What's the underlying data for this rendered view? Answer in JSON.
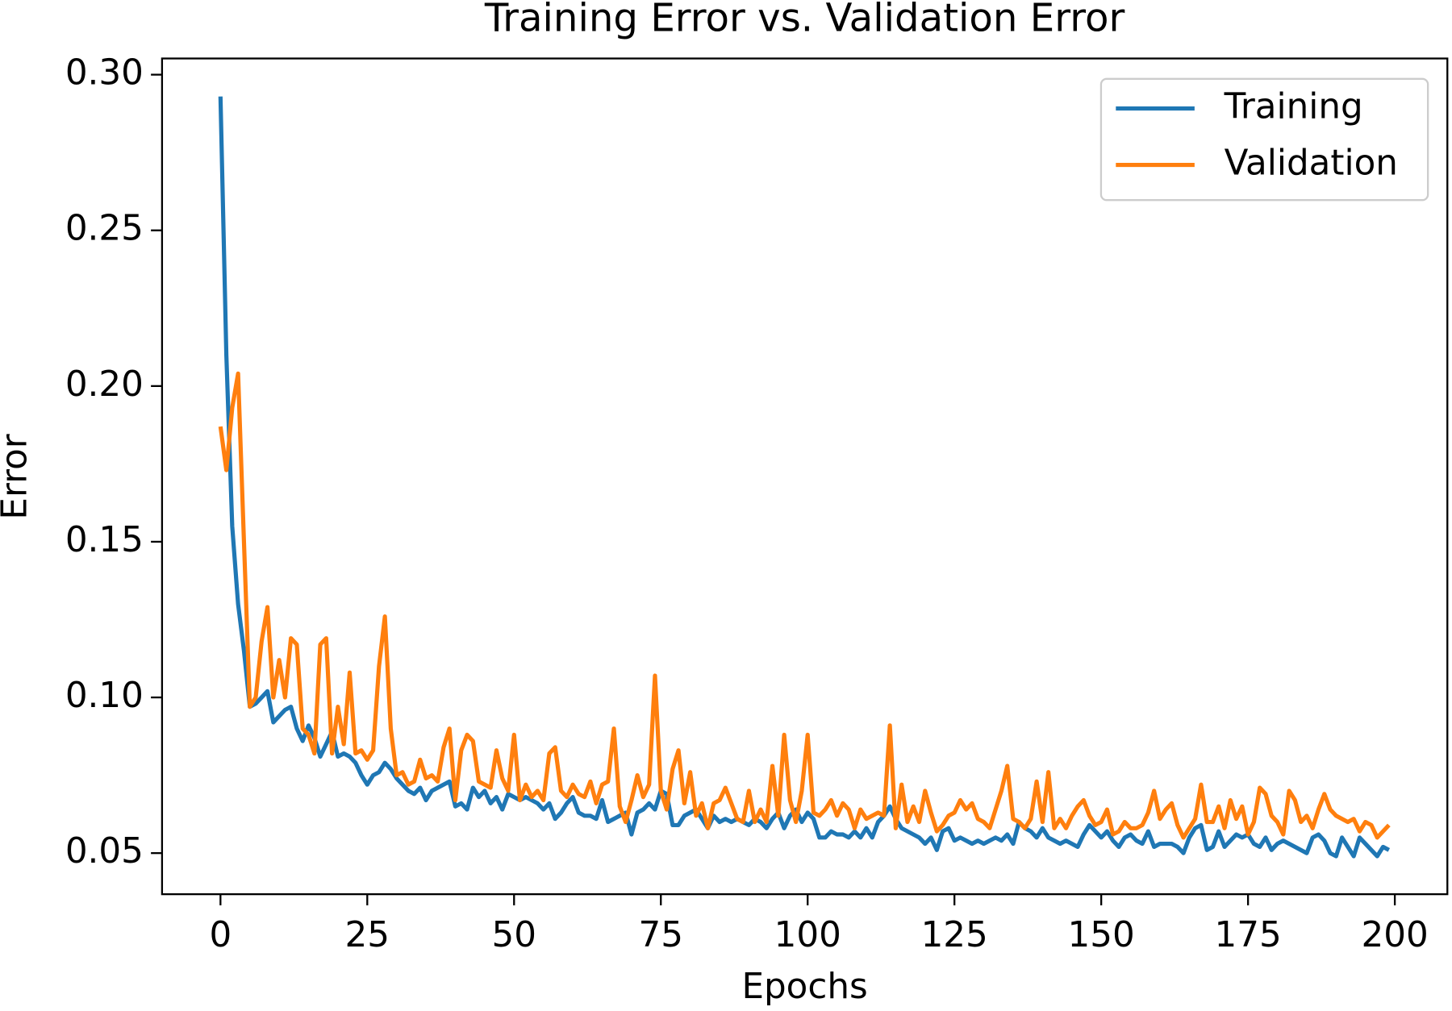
{
  "chart_data": {
    "type": "line",
    "title": "Training Error vs. Validation Error",
    "xlabel": "Epochs",
    "ylabel": "Error",
    "x": [
      0,
      1,
      2,
      3,
      4,
      5,
      6,
      7,
      8,
      9,
      10,
      11,
      12,
      13,
      14,
      15,
      16,
      17,
      18,
      19,
      20,
      21,
      22,
      23,
      24,
      25,
      26,
      27,
      28,
      29,
      30,
      31,
      32,
      33,
      34,
      35,
      36,
      37,
      38,
      39,
      40,
      41,
      42,
      43,
      44,
      45,
      46,
      47,
      48,
      49,
      50,
      51,
      52,
      53,
      54,
      55,
      56,
      57,
      58,
      59,
      60,
      61,
      62,
      63,
      64,
      65,
      66,
      67,
      68,
      69,
      70,
      71,
      72,
      73,
      74,
      75,
      76,
      77,
      78,
      79,
      80,
      81,
      82,
      83,
      84,
      85,
      86,
      87,
      88,
      89,
      90,
      91,
      92,
      93,
      94,
      95,
      96,
      97,
      98,
      99,
      100,
      101,
      102,
      103,
      104,
      105,
      106,
      107,
      108,
      109,
      110,
      111,
      112,
      113,
      114,
      115,
      116,
      117,
      118,
      119,
      120,
      121,
      122,
      123,
      124,
      125,
      126,
      127,
      128,
      129,
      130,
      131,
      132,
      133,
      134,
      135,
      136,
      137,
      138,
      139,
      140,
      141,
      142,
      143,
      144,
      145,
      146,
      147,
      148,
      149,
      150,
      151,
      152,
      153,
      154,
      155,
      156,
      157,
      158,
      159,
      160,
      161,
      162,
      163,
      164,
      165,
      166,
      167,
      168,
      169,
      170,
      171,
      172,
      173,
      174,
      175,
      176,
      177,
      178,
      179,
      180,
      181,
      182,
      183,
      184,
      185,
      186,
      187,
      188,
      189,
      190,
      191,
      192,
      193,
      194,
      195,
      196,
      197,
      198,
      199
    ],
    "series": [
      {
        "name": "Training",
        "color": "#1f77b4",
        "values": [
          0.293,
          0.21,
          0.155,
          0.13,
          0.115,
          0.097,
          0.098,
          0.1,
          0.102,
          0.092,
          0.094,
          0.096,
          0.097,
          0.09,
          0.086,
          0.091,
          0.087,
          0.081,
          0.085,
          0.089,
          0.081,
          0.082,
          0.081,
          0.079,
          0.075,
          0.072,
          0.075,
          0.076,
          0.079,
          0.077,
          0.074,
          0.072,
          0.07,
          0.069,
          0.071,
          0.067,
          0.07,
          0.071,
          0.072,
          0.073,
          0.065,
          0.066,
          0.064,
          0.071,
          0.068,
          0.07,
          0.066,
          0.068,
          0.064,
          0.069,
          0.068,
          0.067,
          0.068,
          0.067,
          0.066,
          0.064,
          0.066,
          0.061,
          0.063,
          0.066,
          0.068,
          0.063,
          0.062,
          0.062,
          0.061,
          0.067,
          0.06,
          0.061,
          0.062,
          0.063,
          0.056,
          0.063,
          0.064,
          0.066,
          0.064,
          0.07,
          0.069,
          0.059,
          0.059,
          0.062,
          0.063,
          0.064,
          0.061,
          0.058,
          0.062,
          0.06,
          0.061,
          0.06,
          0.061,
          0.06,
          0.059,
          0.061,
          0.06,
          0.058,
          0.061,
          0.063,
          0.058,
          0.062,
          0.064,
          0.06,
          0.063,
          0.061,
          0.055,
          0.055,
          0.057,
          0.056,
          0.056,
          0.055,
          0.057,
          0.055,
          0.058,
          0.055,
          0.06,
          0.062,
          0.065,
          0.061,
          0.058,
          0.057,
          0.056,
          0.055,
          0.053,
          0.055,
          0.051,
          0.057,
          0.058,
          0.054,
          0.055,
          0.054,
          0.053,
          0.054,
          0.053,
          0.054,
          0.055,
          0.054,
          0.056,
          0.053,
          0.06,
          0.058,
          0.057,
          0.055,
          0.058,
          0.055,
          0.054,
          0.053,
          0.054,
          0.053,
          0.052,
          0.056,
          0.059,
          0.057,
          0.055,
          0.057,
          0.054,
          0.052,
          0.055,
          0.056,
          0.054,
          0.053,
          0.057,
          0.052,
          0.053,
          0.053,
          0.053,
          0.052,
          0.05,
          0.055,
          0.058,
          0.059,
          0.051,
          0.052,
          0.057,
          0.052,
          0.054,
          0.056,
          0.055,
          0.056,
          0.053,
          0.052,
          0.055,
          0.051,
          0.053,
          0.054,
          0.053,
          0.052,
          0.051,
          0.05,
          0.055,
          0.056,
          0.054,
          0.05,
          0.049,
          0.055,
          0.052,
          0.049,
          0.055,
          0.053,
          0.051,
          0.049,
          0.052,
          0.051
        ]
      },
      {
        "name": "Validation",
        "color": "#ff7f0e",
        "values": [
          0.187,
          0.173,
          0.193,
          0.204,
          0.15,
          0.097,
          0.1,
          0.118,
          0.129,
          0.1,
          0.112,
          0.1,
          0.119,
          0.117,
          0.09,
          0.088,
          0.082,
          0.117,
          0.119,
          0.082,
          0.097,
          0.085,
          0.108,
          0.082,
          0.083,
          0.08,
          0.083,
          0.11,
          0.126,
          0.09,
          0.075,
          0.076,
          0.072,
          0.073,
          0.08,
          0.074,
          0.075,
          0.073,
          0.084,
          0.09,
          0.067,
          0.083,
          0.088,
          0.086,
          0.073,
          0.072,
          0.071,
          0.083,
          0.074,
          0.07,
          0.088,
          0.067,
          0.072,
          0.068,
          0.07,
          0.067,
          0.082,
          0.084,
          0.07,
          0.068,
          0.072,
          0.069,
          0.068,
          0.073,
          0.066,
          0.072,
          0.073,
          0.09,
          0.065,
          0.06,
          0.067,
          0.075,
          0.068,
          0.072,
          0.107,
          0.07,
          0.064,
          0.077,
          0.083,
          0.066,
          0.076,
          0.062,
          0.066,
          0.058,
          0.066,
          0.067,
          0.071,
          0.066,
          0.061,
          0.06,
          0.07,
          0.06,
          0.064,
          0.06,
          0.078,
          0.062,
          0.088,
          0.067,
          0.06,
          0.07,
          0.088,
          0.063,
          0.062,
          0.064,
          0.067,
          0.062,
          0.066,
          0.064,
          0.058,
          0.064,
          0.061,
          0.062,
          0.063,
          0.062,
          0.091,
          0.058,
          0.072,
          0.06,
          0.065,
          0.06,
          0.07,
          0.063,
          0.057,
          0.059,
          0.062,
          0.063,
          0.067,
          0.064,
          0.066,
          0.061,
          0.06,
          0.058,
          0.064,
          0.07,
          0.078,
          0.061,
          0.06,
          0.058,
          0.061,
          0.073,
          0.06,
          0.076,
          0.058,
          0.061,
          0.058,
          0.062,
          0.065,
          0.067,
          0.062,
          0.059,
          0.06,
          0.064,
          0.056,
          0.057,
          0.06,
          0.058,
          0.058,
          0.059,
          0.063,
          0.07,
          0.061,
          0.064,
          0.066,
          0.059,
          0.055,
          0.058,
          0.061,
          0.072,
          0.06,
          0.06,
          0.065,
          0.058,
          0.067,
          0.061,
          0.065,
          0.056,
          0.06,
          0.071,
          0.069,
          0.062,
          0.06,
          0.056,
          0.07,
          0.067,
          0.06,
          0.062,
          0.058,
          0.064,
          0.069,
          0.064,
          0.062,
          0.061,
          0.06,
          0.061,
          0.057,
          0.06,
          0.059,
          0.055,
          0.057,
          0.059
        ]
      }
    ],
    "xlim": [
      -9.95,
      208.95
    ],
    "ylim": [
      0.0368,
      0.3052
    ],
    "xticks": [
      0,
      25,
      50,
      75,
      100,
      125,
      150,
      175,
      200
    ],
    "yticks": [
      0.05,
      {
        "value": 0.1,
        "label": "0.10"
      },
      0.15,
      {
        "value": 0.2,
        "label": "0.20"
      },
      0.25,
      {
        "value": 0.3,
        "label": "0.30"
      }
    ],
    "legend": "upper right",
    "grid": false
  }
}
